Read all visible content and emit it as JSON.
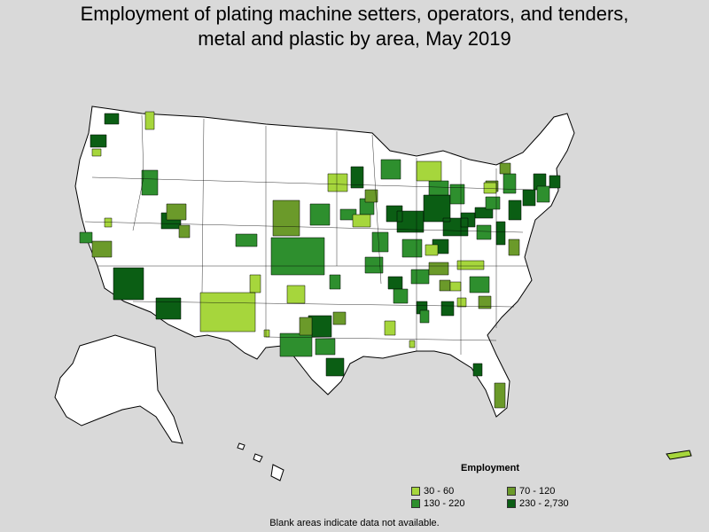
{
  "title": {
    "line1": "Employment of plating machine setters, operators, and tenders,",
    "line2": "metal and plastic by area, May 2019"
  },
  "legend": {
    "title": "Employment",
    "items": [
      {
        "label": "30 - 60",
        "color": "#a6d63c"
      },
      {
        "label": "70 - 120",
        "color": "#6b9a2a"
      },
      {
        "label": "130 - 220",
        "color": "#2e8f2e"
      },
      {
        "label": "230 - 2,730",
        "color": "#0b5e14"
      }
    ]
  },
  "footnote": "Blank areas indicate data not available.",
  "colors": {
    "background": "#d9d9d9",
    "land": "#ffffff",
    "border": "#000000"
  }
}
